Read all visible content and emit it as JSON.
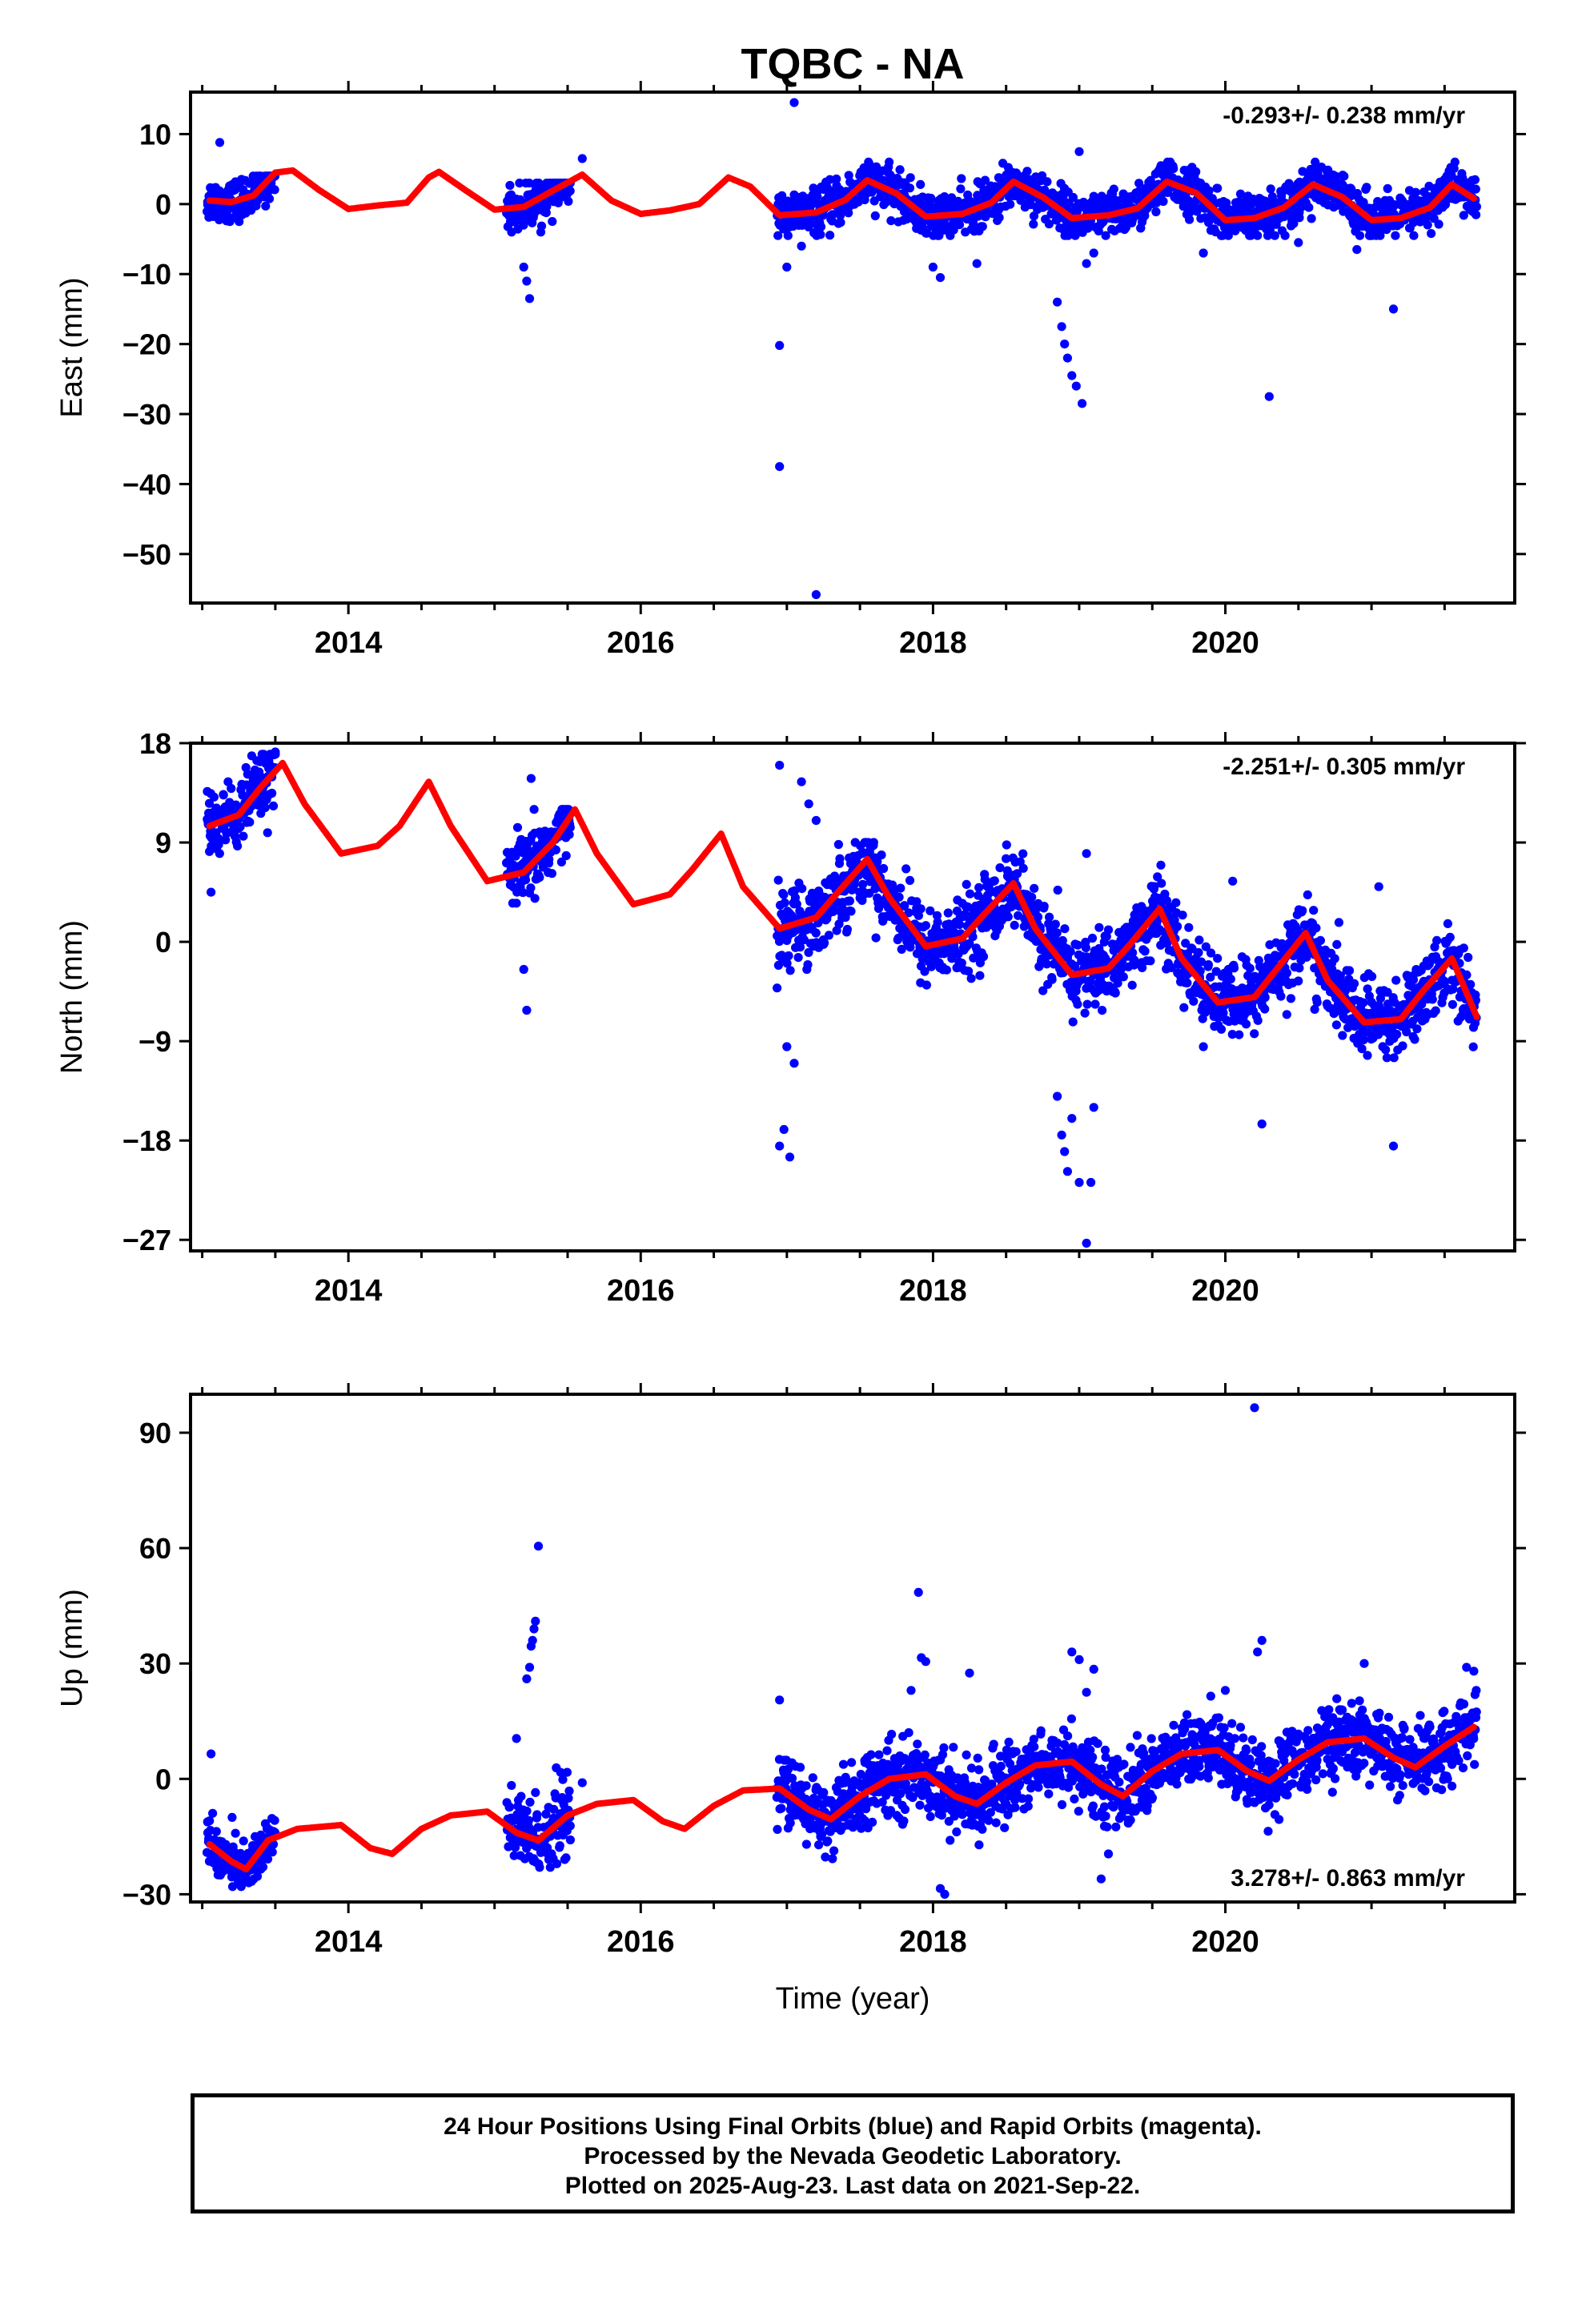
{
  "title": "TQBC - NA",
  "footer": {
    "line1": "24 Hour Positions Using Final Orbits (blue) and Rapid Orbits (magenta).",
    "line2": "Processed by the Nevada Geodetic Laboratory.",
    "line3": "Plotted on 2025-Aug-23. Last data on 2021-Sep-22."
  },
  "colors": {
    "final_orbits": "#0000ff",
    "model_fit": "#ff0000",
    "frame": "#000000"
  },
  "chart_data": [
    {
      "type": "scatter",
      "name": "east",
      "ylabel": "East (mm)",
      "xlabel": "",
      "xlim": [
        2012.92,
        2021.98
      ],
      "ylim": [
        -57,
        16
      ],
      "xticks": [
        2014,
        2016,
        2018,
        2020
      ],
      "yticks": [
        10,
        0,
        -10,
        -20,
        -30,
        -40,
        -50
      ],
      "rate_text": "-0.293+/- 0.238 mm/yr",
      "rate_position": "top-right",
      "velocity_mm_per_yr": -0.293,
      "model": {
        "x": [
          2013.05,
          2013.2,
          2013.35,
          2013.5,
          2013.62,
          2013.8,
          2014.0,
          2014.2,
          2014.4,
          2014.55,
          2014.62,
          2014.8,
          2015.0,
          2015.2,
          2015.45,
          2015.6,
          2015.8,
          2016.0,
          2016.2,
          2016.4,
          2016.6,
          2016.75,
          2016.95,
          2017.2,
          2017.4,
          2017.55,
          2017.75,
          2017.95,
          2018.2,
          2018.4,
          2018.55,
          2018.75,
          2018.95,
          2019.2,
          2019.4,
          2019.6,
          2019.8,
          2020.0,
          2020.2,
          2020.4,
          2020.6,
          2020.8,
          2021.0,
          2021.2,
          2021.4,
          2021.55,
          2021.7
        ],
        "y": [
          0.5,
          0.3,
          1.2,
          4.5,
          4.8,
          2.0,
          -0.7,
          -0.2,
          0.2,
          3.8,
          4.6,
          2.0,
          -0.8,
          -0.4,
          2.5,
          4.2,
          0.5,
          -1.4,
          -0.9,
          0.0,
          3.8,
          2.5,
          -1.6,
          -1.2,
          0.6,
          3.4,
          1.5,
          -1.8,
          -1.4,
          0.2,
          3.2,
          1.0,
          -2.0,
          -1.6,
          -0.6,
          3.2,
          1.6,
          -2.3,
          -2.0,
          -0.5,
          2.8,
          1.0,
          -2.3,
          -2.0,
          -0.5,
          2.8,
          0.8
        ]
      },
      "observation_segments": [
        {
          "x_start": 2013.03,
          "x_end": 2013.5,
          "y_min": -2.5,
          "y_max": 4.0,
          "scatter": 1.5
        },
        {
          "x_start": 2015.08,
          "x_end": 2015.52,
          "y_min": -4.0,
          "y_max": 3.0,
          "scatter": 1.7
        },
        {
          "x_start": 2016.93,
          "x_end": 2021.72,
          "y_min": -4.5,
          "y_max": 6.0,
          "scatter": 1.6
        }
      ],
      "outliers": [
        [
          2013.12,
          8.8
        ],
        [
          2015.2,
          -9.0
        ],
        [
          2015.22,
          -11.0
        ],
        [
          2015.24,
          -13.5
        ],
        [
          2015.6,
          6.5
        ],
        [
          2016.95,
          -20.2
        ],
        [
          2016.95,
          -37.5
        ],
        [
          2017.05,
          14.5
        ],
        [
          2017.0,
          -9.0
        ],
        [
          2017.1,
          -6.0
        ],
        [
          2017.2,
          -55.8
        ],
        [
          2018.0,
          -9.0
        ],
        [
          2018.05,
          -10.5
        ],
        [
          2018.3,
          -8.5
        ],
        [
          2018.85,
          -14.0
        ],
        [
          2018.88,
          -17.5
        ],
        [
          2018.9,
          -20.0
        ],
        [
          2018.92,
          -22.0
        ],
        [
          2018.95,
          -24.5
        ],
        [
          2018.98,
          -26.0
        ],
        [
          2019.02,
          -28.5
        ],
        [
          2019.0,
          7.5
        ],
        [
          2019.05,
          -8.5
        ],
        [
          2019.1,
          -7.0
        ],
        [
          2020.3,
          -27.5
        ],
        [
          2021.15,
          -15.0
        ],
        [
          2019.85,
          -7.0
        ],
        [
          2020.5,
          -5.5
        ],
        [
          2020.9,
          -6.5
        ]
      ]
    },
    {
      "type": "scatter",
      "name": "north",
      "ylabel": "North (mm)",
      "xlabel": "",
      "xlim": [
        2012.92,
        2021.98
      ],
      "ylim": [
        -28,
        18
      ],
      "xticks": [
        2014,
        2016,
        2018,
        2020
      ],
      "yticks": [
        18,
        9,
        0,
        -9,
        -18,
        -27
      ],
      "rate_text": "-2.251+/- 0.305 mm/yr",
      "rate_position": "top-right",
      "velocity_mm_per_yr": -2.251,
      "model": {
        "x": [
          2013.05,
          2013.25,
          2013.4,
          2013.55,
          2013.7,
          2013.95,
          2014.2,
          2014.35,
          2014.55,
          2014.7,
          2014.95,
          2015.2,
          2015.4,
          2015.55,
          2015.7,
          2015.95,
          2016.2,
          2016.35,
          2016.55,
          2016.7,
          2016.95,
          2017.2,
          2017.35,
          2017.55,
          2017.7,
          2017.95,
          2018.2,
          2018.35,
          2018.55,
          2018.7,
          2018.95,
          2019.2,
          2019.35,
          2019.55,
          2019.7,
          2019.95,
          2020.2,
          2020.35,
          2020.55,
          2020.7,
          2020.95,
          2021.2,
          2021.35,
          2021.55,
          2021.72
        ],
        "y": [
          10.5,
          11.5,
          14.0,
          16.2,
          12.5,
          8.0,
          8.7,
          10.5,
          14.5,
          10.5,
          5.5,
          6.3,
          9.0,
          12.0,
          8.0,
          3.4,
          4.3,
          6.5,
          9.8,
          5.0,
          1.2,
          2.2,
          4.5,
          7.5,
          4.0,
          -0.4,
          0.3,
          2.5,
          5.3,
          1.2,
          -3.0,
          -2.4,
          -0.2,
          3.0,
          -1.5,
          -5.5,
          -5.0,
          -2.5,
          0.8,
          -3.5,
          -7.3,
          -7.0,
          -4.5,
          -1.5,
          -6.8
        ]
      },
      "observation_segments": [
        {
          "x_start": 2013.03,
          "x_end": 2013.5,
          "y_min": 6.0,
          "y_max": 17.0,
          "scatter": 1.6
        },
        {
          "x_start": 2015.08,
          "x_end": 2015.52,
          "y_min": 3.5,
          "y_max": 12.0,
          "scatter": 1.6
        },
        {
          "x_start": 2016.93,
          "x_end": 2021.72,
          "y_min": -10.5,
          "y_max": 9.0,
          "scatter": 1.7
        }
      ],
      "outliers": [
        [
          2013.06,
          4.5
        ],
        [
          2013.5,
          17.2
        ],
        [
          2015.25,
          14.8
        ],
        [
          2015.2,
          -2.5
        ],
        [
          2015.22,
          -6.2
        ],
        [
          2016.95,
          16.0
        ],
        [
          2016.95,
          -18.5
        ],
        [
          2016.98,
          -17.0
        ],
        [
          2017.02,
          -19.5
        ],
        [
          2017.0,
          -9.5
        ],
        [
          2017.05,
          -11.0
        ],
        [
          2017.1,
          14.5
        ],
        [
          2017.15,
          12.5
        ],
        [
          2017.2,
          11.0
        ],
        [
          2018.85,
          -14.0
        ],
        [
          2018.88,
          -17.5
        ],
        [
          2018.9,
          -19.0
        ],
        [
          2018.92,
          -20.8
        ],
        [
          2018.95,
          -16.0
        ],
        [
          2019.0,
          -21.8
        ],
        [
          2019.05,
          -27.3
        ],
        [
          2019.08,
          -21.8
        ],
        [
          2019.1,
          -15.0
        ],
        [
          2019.05,
          8.0
        ],
        [
          2020.25,
          -16.5
        ],
        [
          2021.15,
          -18.5
        ],
        [
          2021.05,
          5.0
        ],
        [
          2020.05,
          5.5
        ],
        [
          2019.85,
          -9.5
        ]
      ]
    },
    {
      "type": "scatter",
      "name": "up",
      "ylabel": "Up (mm)",
      "xlabel": "Time (year)",
      "xlim": [
        2012.92,
        2021.98
      ],
      "ylim": [
        -32,
        100
      ],
      "xticks": [
        2014,
        2016,
        2018,
        2020
      ],
      "yticks": [
        90,
        60,
        30,
        0,
        -30
      ],
      "rate_text": "3.278+/- 0.863 mm/yr",
      "rate_position": "bottom-right",
      "velocity_mm_per_yr": 3.278,
      "model": {
        "x": [
          2013.05,
          2013.2,
          2013.3,
          2013.45,
          2013.65,
          2013.95,
          2014.15,
          2014.3,
          2014.5,
          2014.7,
          2014.95,
          2015.15,
          2015.3,
          2015.5,
          2015.7,
          2015.95,
          2016.15,
          2016.3,
          2016.5,
          2016.7,
          2016.95,
          2017.15,
          2017.3,
          2017.5,
          2017.7,
          2017.95,
          2018.15,
          2018.3,
          2018.5,
          2018.7,
          2018.95,
          2019.15,
          2019.3,
          2019.5,
          2019.7,
          2019.95,
          2020.15,
          2020.3,
          2020.5,
          2020.7,
          2020.95,
          2021.15,
          2021.3,
          2021.5,
          2021.7
        ],
        "y": [
          -17.0,
          -21.5,
          -23.5,
          -16.0,
          -13.0,
          -12.0,
          -18.0,
          -19.5,
          -13.0,
          -9.5,
          -8.5,
          -14.0,
          -16.0,
          -9.5,
          -6.5,
          -5.5,
          -11.0,
          -13.0,
          -7.0,
          -3.0,
          -2.5,
          -8.0,
          -10.5,
          -4.5,
          0.0,
          1.2,
          -4.5,
          -6.5,
          -1.0,
          3.5,
          4.5,
          -1.5,
          -4.5,
          2.0,
          6.5,
          7.5,
          2.0,
          -0.5,
          5.0,
          9.5,
          10.5,
          5.5,
          3.0,
          8.5,
          13.5
        ]
      },
      "observation_segments": [
        {
          "x_start": 2013.03,
          "x_end": 2013.5,
          "y_min": -28.0,
          "y_max": -7.0,
          "scatter": 3.5
        },
        {
          "x_start": 2015.08,
          "x_end": 2015.52,
          "y_min": -23.0,
          "y_max": 12.0,
          "scatter": 5.0
        },
        {
          "x_start": 2016.93,
          "x_end": 2021.72,
          "y_min": -26.0,
          "y_max": 23.0,
          "scatter": 4.5
        }
      ],
      "outliers": [
        [
          2013.06,
          6.5
        ],
        [
          2015.22,
          26.0
        ],
        [
          2015.24,
          29.0
        ],
        [
          2015.25,
          34.5
        ],
        [
          2015.26,
          36.0
        ],
        [
          2015.27,
          39.0
        ],
        [
          2015.28,
          41.0
        ],
        [
          2015.3,
          60.5
        ],
        [
          2015.15,
          10.5
        ],
        [
          2015.6,
          -1.0
        ],
        [
          2016.95,
          20.5
        ],
        [
          2017.9,
          48.5
        ],
        [
          2017.92,
          31.5
        ],
        [
          2017.95,
          30.5
        ],
        [
          2017.85,
          23.0
        ],
        [
          2018.05,
          -28.5
        ],
        [
          2018.08,
          -30.0
        ],
        [
          2018.25,
          27.5
        ],
        [
          2018.95,
          33.0
        ],
        [
          2019.0,
          31.0
        ],
        [
          2019.1,
          28.5
        ],
        [
          2019.05,
          22.5
        ],
        [
          2019.2,
          -19.5
        ],
        [
          2019.15,
          -26.0
        ],
        [
          2020.2,
          96.5
        ],
        [
          2020.25,
          36.0
        ],
        [
          2020.22,
          33.0
        ],
        [
          2020.95,
          30.0
        ],
        [
          2021.65,
          29.0
        ],
        [
          2021.7,
          28.0
        ],
        [
          2020.0,
          23.0
        ],
        [
          2019.9,
          21.5
        ]
      ]
    }
  ]
}
